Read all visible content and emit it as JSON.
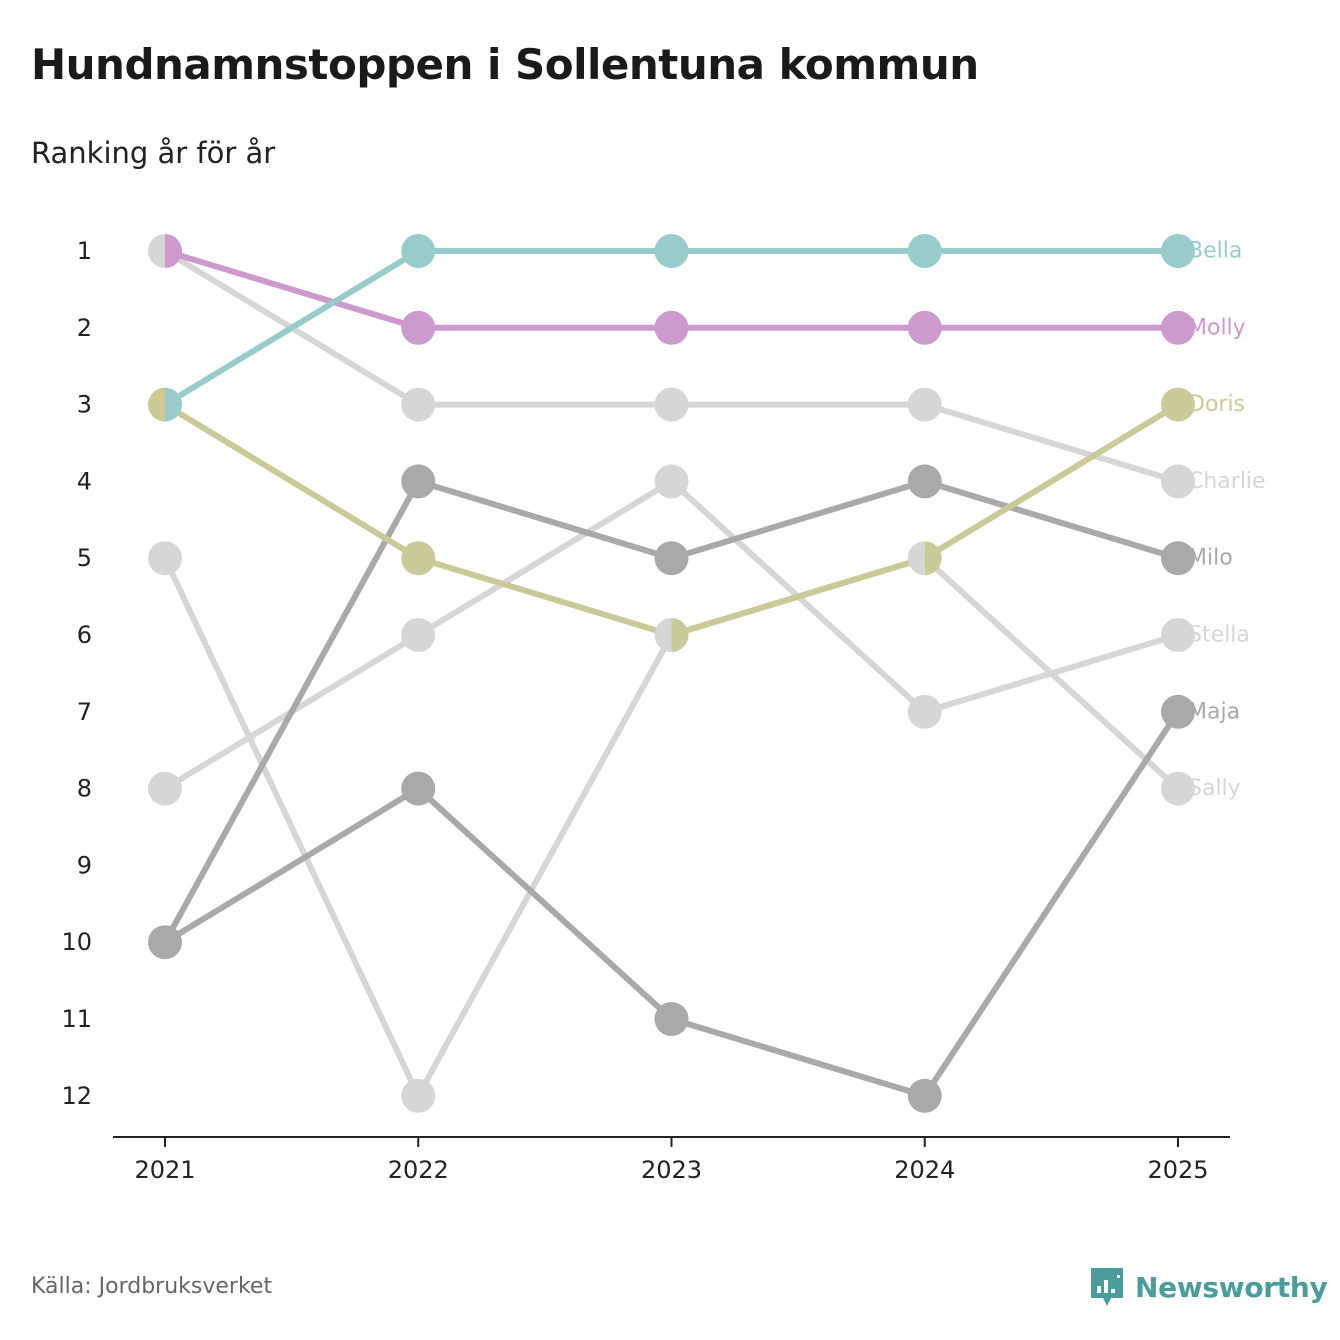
{
  "title": "Hundnamnstoppen i Sollentuna kommun",
  "subtitle": "Ranking år för år",
  "source": "Källa: Jordbruksverket",
  "brand": {
    "name": "Newsworthy",
    "icon": "newsworthy-logo-icon",
    "color": "#4a9d9b"
  },
  "chart_data": {
    "type": "line",
    "title": "Hundnamnstoppen i Sollentuna kommun",
    "subtitle": "Ranking år för år",
    "xlabel": "",
    "ylabel": "",
    "categories": [
      "2021",
      "2022",
      "2023",
      "2024",
      "2025"
    ],
    "y_ticks": [
      "1",
      "2",
      "3",
      "4",
      "5",
      "6",
      "7",
      "8",
      "9",
      "10",
      "11",
      "12"
    ],
    "ylim": [
      1,
      12
    ],
    "y_inverted": true,
    "grid": false,
    "series": [
      {
        "name": "Sally",
        "values": [
          5,
          12,
          6,
          5,
          8
        ],
        "color": "#d6d6d6"
      },
      {
        "name": "Stella",
        "values": [
          8,
          6,
          4,
          7,
          6
        ],
        "color": "#d6d6d6"
      },
      {
        "name": "Charlie",
        "values": [
          1,
          3,
          3,
          3,
          4
        ],
        "color": "#d6d6d6"
      },
      {
        "name": "Maja",
        "values": [
          10,
          8,
          11,
          12,
          7
        ],
        "color": "#a9a9a9"
      },
      {
        "name": "Milo",
        "values": [
          10,
          4,
          5,
          4,
          5
        ],
        "color": "#a9a9a9"
      },
      {
        "name": "Doris",
        "values": [
          3,
          5,
          6,
          5,
          3
        ],
        "color": "#c9ca97"
      },
      {
        "name": "Molly",
        "values": [
          1,
          2,
          2,
          2,
          2
        ],
        "color": "#cc9acd"
      },
      {
        "name": "Bella",
        "values": [
          3,
          1,
          1,
          1,
          1
        ],
        "color": "#98cccb"
      }
    ]
  }
}
